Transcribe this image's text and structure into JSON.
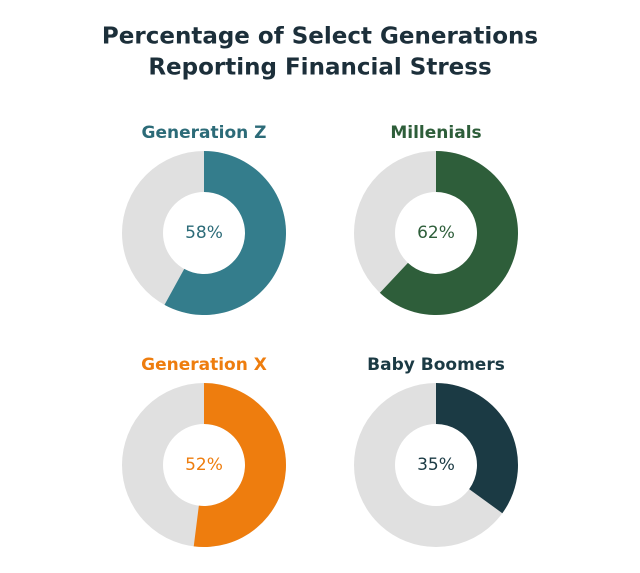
{
  "title": [
    "Percentage of Select Generations",
    "Reporting Financial Stress"
  ],
  "chart_data": [
    {
      "type": "donut",
      "title": "Generation Z",
      "values": [
        58
      ],
      "value_labels": [
        "58%"
      ],
      "color": "#347d8c",
      "label_color": "#2c6b78"
    },
    {
      "type": "donut",
      "title": "Millenials",
      "values": [
        62
      ],
      "value_labels": [
        "62%"
      ],
      "color": "#2e5e3a",
      "label_color": "#2e5e3a"
    },
    {
      "type": "donut",
      "title": "Generation X",
      "values": [
        52
      ],
      "value_labels": [
        "52%"
      ],
      "color": "#ee7d0e",
      "label_color": "#ee7d0e"
    },
    {
      "type": "donut",
      "title": "Baby Boomers",
      "values": [
        35
      ],
      "value_labels": [
        "35%"
      ],
      "color": "#1b3a44",
      "label_color": "#1b3a44"
    }
  ]
}
